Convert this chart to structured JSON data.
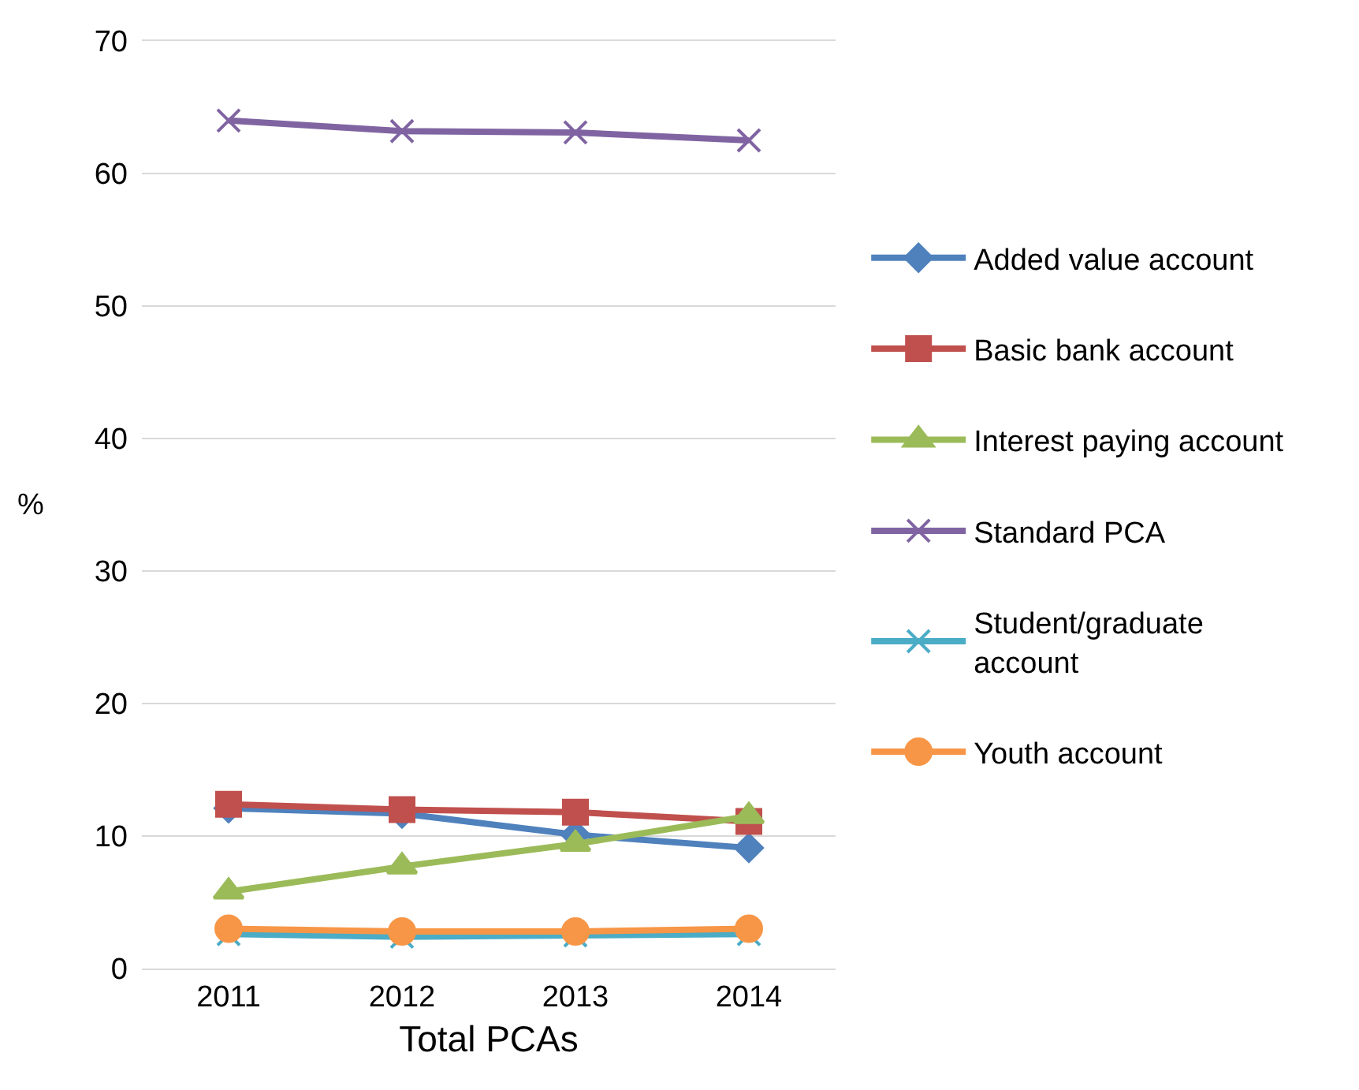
{
  "chart_data": {
    "type": "line",
    "xlabel": "Total PCAs",
    "ylabel": "%",
    "categories": [
      "2011",
      "2012",
      "2013",
      "2014"
    ],
    "series": [
      {
        "name": "Added value account",
        "color": "#4f81bd",
        "marker": "diamond",
        "values": [
          12.1,
          11.7,
          10.1,
          9.1
        ]
      },
      {
        "name": "Basic bank account",
        "color": "#c0504d",
        "marker": "square",
        "values": [
          12.4,
          12.0,
          11.8,
          11.1
        ]
      },
      {
        "name": "Interest paying account",
        "color": "#9bbb59",
        "marker": "triangle",
        "values": [
          5.8,
          7.7,
          9.4,
          11.5
        ]
      },
      {
        "name": "Standard PCA",
        "color": "#8064a2",
        "marker": "cross",
        "values": [
          64.0,
          63.2,
          63.1,
          62.5
        ]
      },
      {
        "name": "Student/graduate account",
        "color": "#4bacc6",
        "marker": "cross",
        "values": [
          2.6,
          2.4,
          2.5,
          2.6
        ]
      },
      {
        "name": "Youth account",
        "color": "#f79646",
        "marker": "circle",
        "values": [
          3.0,
          2.8,
          2.8,
          3.0
        ]
      }
    ],
    "ylim": [
      0,
      70
    ],
    "yticks": [
      0,
      10,
      20,
      30,
      40,
      50,
      60,
      70
    ],
    "grid": "y",
    "legend": "right",
    "line_style": "solid"
  }
}
